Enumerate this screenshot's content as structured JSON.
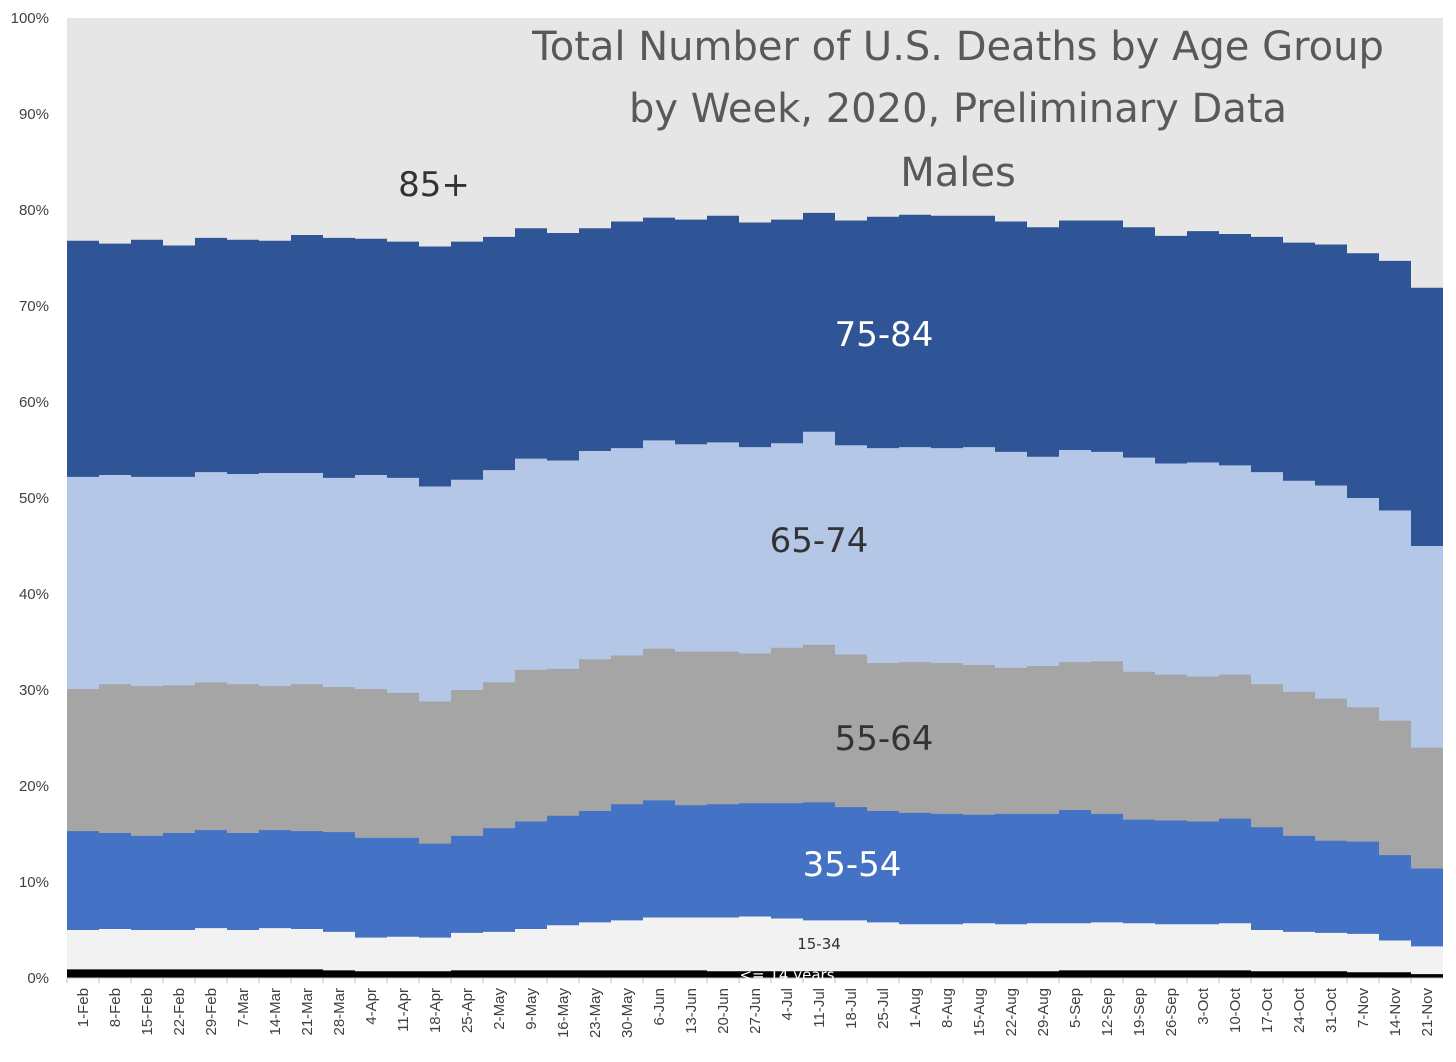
{
  "chart_data": {
    "type": "area",
    "stacking": "percent",
    "title": [
      "Total Number of U.S. Deaths by Age Group",
      "by Week, 2020, Preliminary Data",
      "Males"
    ],
    "ylim": [
      0,
      100
    ],
    "yticks": [
      "0%",
      "10%",
      "20%",
      "30%",
      "40%",
      "50%",
      "60%",
      "70%",
      "80%",
      "90%",
      "100%"
    ],
    "grid": false,
    "legend": "none",
    "categories": [
      "1-Feb",
      "8-Feb",
      "15-Feb",
      "22-Feb",
      "29-Feb",
      "7-Mar",
      "14-Mar",
      "21-Mar",
      "28-Mar",
      "4-Apr",
      "11-Apr",
      "18-Apr",
      "25-Apr",
      "2-May",
      "9-May",
      "16-May",
      "23-May",
      "30-May",
      "6-Jun",
      "13-Jun",
      "20-Jun",
      "27-Jun",
      "4-Jul",
      "11-Jul",
      "18-Jul",
      "25-Jul",
      "1-Aug",
      "8-Aug",
      "15-Aug",
      "22-Aug",
      "29-Aug",
      "5-Sep",
      "12-Sep",
      "19-Sep",
      "26-Sep",
      "3-Oct",
      "10-Oct",
      "17-Oct",
      "24-Oct",
      "31-Oct",
      "7-Nov",
      "14-Nov",
      "21-Nov"
    ],
    "series": [
      {
        "name": "<= 14 years",
        "color": "#000000",
        "top": [
          0.9,
          0.9,
          0.9,
          0.9,
          0.9,
          0.9,
          0.9,
          0.9,
          0.8,
          0.7,
          0.7,
          0.7,
          0.8,
          0.8,
          0.8,
          0.8,
          0.8,
          0.8,
          0.8,
          0.8,
          0.7,
          0.7,
          0.7,
          0.7,
          0.7,
          0.7,
          0.7,
          0.7,
          0.7,
          0.7,
          0.7,
          0.8,
          0.8,
          0.8,
          0.8,
          0.8,
          0.8,
          0.7,
          0.7,
          0.7,
          0.6,
          0.6,
          0.4
        ]
      },
      {
        "name": "15-34",
        "color": "#f2f2f2",
        "top": [
          5.0,
          5.1,
          5.0,
          5.0,
          5.2,
          5.0,
          5.2,
          5.1,
          4.8,
          4.2,
          4.3,
          4.2,
          4.7,
          4.8,
          5.1,
          5.5,
          5.8,
          6.0,
          6.3,
          6.3,
          6.3,
          6.4,
          6.2,
          6.0,
          6.0,
          5.8,
          5.6,
          5.6,
          5.7,
          5.6,
          5.7,
          5.7,
          5.8,
          5.7,
          5.6,
          5.6,
          5.7,
          5.0,
          4.8,
          4.7,
          4.6,
          3.9,
          3.3
        ]
      },
      {
        "name": "35-54",
        "color": "#4472c4",
        "top": [
          15.3,
          15.1,
          14.8,
          15.1,
          15.4,
          15.1,
          15.4,
          15.3,
          15.2,
          14.6,
          14.6,
          14.0,
          14.8,
          15.6,
          16.3,
          16.9,
          17.4,
          18.1,
          18.5,
          18.0,
          18.1,
          18.2,
          18.2,
          18.3,
          17.8,
          17.4,
          17.2,
          17.1,
          17.0,
          17.1,
          17.1,
          17.5,
          17.1,
          16.5,
          16.4,
          16.3,
          16.6,
          15.7,
          14.8,
          14.3,
          14.2,
          12.8,
          11.4
        ]
      },
      {
        "name": "55-64",
        "color": "#a5a5a5",
        "top": [
          30.1,
          30.6,
          30.4,
          30.5,
          30.8,
          30.6,
          30.4,
          30.6,
          30.3,
          30.1,
          29.7,
          28.8,
          30.0,
          30.8,
          32.1,
          32.2,
          33.2,
          33.6,
          34.3,
          34.0,
          34.0,
          33.8,
          34.4,
          34.7,
          33.7,
          32.8,
          32.9,
          32.8,
          32.6,
          32.3,
          32.5,
          32.9,
          33.0,
          31.9,
          31.6,
          31.4,
          31.6,
          30.6,
          29.8,
          29.1,
          28.2,
          26.8,
          24.0
        ]
      },
      {
        "name": "65-74",
        "color": "#b4c7e7",
        "top": [
          52.2,
          52.4,
          52.2,
          52.2,
          52.7,
          52.5,
          52.6,
          52.6,
          52.1,
          52.4,
          52.1,
          51.2,
          51.9,
          52.9,
          54.1,
          53.9,
          54.9,
          55.2,
          56.0,
          55.6,
          55.8,
          55.3,
          55.7,
          56.9,
          55.5,
          55.2,
          55.3,
          55.2,
          55.3,
          54.8,
          54.3,
          55.0,
          54.8,
          54.2,
          53.6,
          53.7,
          53.4,
          52.7,
          51.8,
          51.3,
          50.0,
          48.7,
          45.0
        ]
      },
      {
        "name": "75-84",
        "color": "#2f5597",
        "top": [
          76.8,
          76.5,
          76.9,
          76.3,
          77.1,
          76.9,
          76.8,
          77.4,
          77.1,
          77.0,
          76.7,
          76.2,
          76.7,
          77.2,
          78.1,
          77.6,
          78.1,
          78.8,
          79.2,
          79.0,
          79.4,
          78.7,
          79.0,
          79.7,
          78.9,
          79.3,
          79.5,
          79.4,
          79.4,
          78.8,
          78.2,
          78.9,
          78.9,
          78.2,
          77.3,
          77.8,
          77.5,
          77.2,
          76.6,
          76.4,
          75.5,
          74.7,
          71.9
        ]
      },
      {
        "name": "85+",
        "color": "#e7e6e6",
        "top": [
          100,
          100,
          100,
          100,
          100,
          100,
          100,
          100,
          100,
          100,
          100,
          100,
          100,
          100,
          100,
          100,
          100,
          100,
          100,
          100,
          100,
          100,
          100,
          100,
          100,
          100,
          100,
          100,
          100,
          100,
          100,
          100,
          100,
          100,
          100,
          100,
          100,
          100,
          100,
          100,
          100,
          100,
          100
        ]
      }
    ]
  }
}
